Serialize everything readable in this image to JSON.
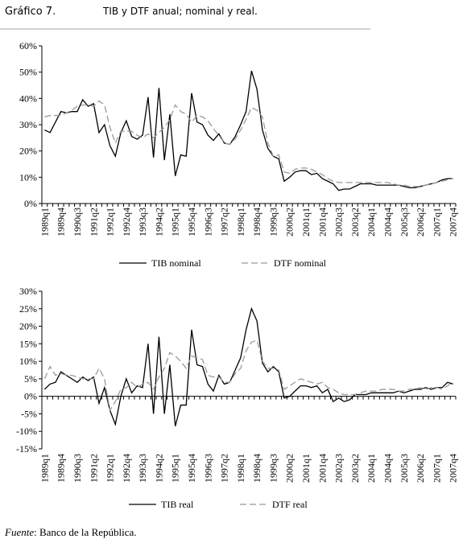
{
  "header": {
    "label": "Gráfico 7.",
    "title": "TIB y DTF anual; nominal y real."
  },
  "footer": {
    "source_label": "Fuente",
    "source": ": Banco de la República."
  },
  "chart_data": [
    {
      "type": "line",
      "legend": "bottom",
      "categories": [
        "1989q1",
        null,
        null,
        "1989q4",
        null,
        null,
        "1990q3",
        null,
        null,
        "1991q2",
        null,
        null,
        "1992q1",
        null,
        null,
        "1992q4",
        null,
        null,
        "1993q3",
        null,
        null,
        "1994q2",
        null,
        null,
        "1995q1",
        null,
        null,
        "1995q4",
        null,
        null,
        "1996q3",
        null,
        null,
        "1997q2",
        null,
        null,
        "1998q1",
        null,
        null,
        "1998q4",
        null,
        null,
        "1999q3",
        null,
        null,
        "2000q2",
        null,
        null,
        "2001q1",
        null,
        null,
        "2001q4",
        null,
        null,
        "2002q3",
        null,
        null,
        "2003q2",
        null,
        null,
        "2004q1",
        null,
        null,
        "2004q4",
        null,
        null,
        "2005q3",
        null,
        null,
        "2006q2",
        null,
        null,
        "2007q1",
        null,
        null,
        "2007q4"
      ],
      "ylim": [
        0,
        60
      ],
      "yticks": [
        {
          "value": 0,
          "label": "0%"
        },
        {
          "value": 10,
          "label": "10%"
        },
        {
          "value": 20,
          "label": "20%"
        },
        {
          "value": 30,
          "label": "30%"
        },
        {
          "value": 40,
          "label": "40%"
        },
        {
          "value": 50,
          "label": "50%"
        },
        {
          "value": 60,
          "label": "60%"
        }
      ],
      "series": [
        {
          "name": "TIB nominal",
          "color": "#000000",
          "style": "solid",
          "values": [
            28,
            27,
            31,
            35,
            34.5,
            35,
            35,
            39.5,
            37,
            38,
            27,
            30,
            22,
            18,
            27,
            31.5,
            25.5,
            24.5,
            26,
            40.5,
            17.5,
            44,
            16.5,
            34,
            10.5,
            18.5,
            18,
            42,
            31,
            30,
            26,
            24,
            26.5,
            23,
            22.5,
            25.5,
            30,
            35,
            50.5,
            43.5,
            28,
            21,
            18,
            17,
            8.5,
            10,
            12,
            12.5,
            12.5,
            11,
            11.5,
            9.5,
            8.5,
            7.5,
            5,
            5.5,
            5.5,
            6.5,
            7.5,
            7.5,
            7.5,
            7,
            7,
            7,
            7,
            7,
            6.5,
            6,
            6,
            6.5,
            7,
            7.5,
            8,
            9,
            9.5,
            9.5
          ]
        },
        {
          "name": "DTF nominal",
          "color": "#9a9a9a",
          "style": "dashed",
          "values": [
            33,
            33.5,
            33.5,
            33.5,
            34.5,
            35.5,
            37,
            37.5,
            37.5,
            37,
            39,
            37.5,
            29,
            23,
            27.5,
            27.5,
            27.5,
            26,
            25,
            26.5,
            25,
            27,
            29,
            32,
            37.5,
            35,
            34,
            31,
            33.5,
            33,
            31.5,
            28.5,
            26,
            23,
            22.5,
            24.5,
            28,
            32,
            36.5,
            35.5,
            33,
            23,
            18,
            18.5,
            12,
            11.5,
            13,
            13.5,
            13.5,
            13,
            12,
            11,
            9.5,
            8.5,
            8,
            8,
            8,
            8,
            8,
            8,
            8,
            8,
            8,
            8,
            7.5,
            7,
            7,
            6.5,
            6.5,
            6.5,
            7,
            7.5,
            8,
            8.5,
            9,
            9.5
          ]
        }
      ]
    },
    {
      "type": "line",
      "legend": "bottom",
      "categories": [
        "1989q1",
        null,
        null,
        "1989q4",
        null,
        null,
        "1990q3",
        null,
        null,
        "1991q2",
        null,
        null,
        "1992q1",
        null,
        null,
        "1992q4",
        null,
        null,
        "1993q3",
        null,
        null,
        "1994q2",
        null,
        null,
        "1995q1",
        null,
        null,
        "1995q4",
        null,
        null,
        "1996q3",
        null,
        null,
        "1997q2",
        null,
        null,
        "1998q1",
        null,
        null,
        "1998q4",
        null,
        null,
        "1999q3",
        null,
        null,
        "2000q2",
        null,
        null,
        "2001q1",
        null,
        null,
        "2001q4",
        null,
        null,
        "2002q3",
        null,
        null,
        "2003q2",
        null,
        null,
        "2004q1",
        null,
        null,
        "2004q4",
        null,
        null,
        "2005q3",
        null,
        null,
        "2006q2",
        null,
        null,
        "2007q1",
        null,
        null,
        "2007q4"
      ],
      "ylim": [
        -15,
        30
      ],
      "yticks": [
        {
          "value": -15,
          "label": "-15%"
        },
        {
          "value": -10,
          "label": "-10%"
        },
        {
          "value": -5,
          "label": "-5%"
        },
        {
          "value": 0,
          "label": "0%"
        },
        {
          "value": 5,
          "label": "5%"
        },
        {
          "value": 10,
          "label": "10%"
        },
        {
          "value": 15,
          "label": "15%"
        },
        {
          "value": 20,
          "label": "20%"
        },
        {
          "value": 25,
          "label": "25%"
        },
        {
          "value": 30,
          "label": "30%"
        }
      ],
      "series": [
        {
          "name": "TIB real",
          "color": "#000000",
          "style": "solid",
          "values": [
            2,
            3.5,
            4,
            7,
            6,
            5,
            4,
            5.5,
            4.5,
            5.5,
            -2,
            2.5,
            -4,
            -8,
            0,
            5,
            1,
            3,
            2.5,
            15,
            -5,
            17,
            -5,
            9,
            -8.5,
            -2.5,
            -2.5,
            19,
            9,
            8.5,
            3.5,
            1.5,
            6,
            3.5,
            4,
            7.5,
            11,
            19,
            25,
            21.5,
            9.5,
            7,
            8.5,
            7,
            -0.5,
            0,
            1.5,
            3,
            3,
            2.5,
            3,
            1,
            2,
            -1.5,
            -0.5,
            -1.5,
            -1,
            0.5,
            0.5,
            0.5,
            1,
            1,
            1,
            1,
            1,
            1.5,
            1,
            1.5,
            2,
            2,
            2.5,
            2,
            2.5,
            2.5,
            4,
            3.5
          ]
        },
        {
          "name": "DTF real",
          "color": "#9a9a9a",
          "style": "dashed",
          "values": [
            5,
            8.5,
            6,
            6.5,
            6,
            6,
            5.5,
            5,
            5,
            5,
            8,
            5,
            -4,
            -1.5,
            2,
            2.5,
            4,
            2.5,
            3.5,
            4,
            2,
            5.5,
            8,
            12.5,
            11.5,
            10,
            8,
            11.5,
            11,
            10.5,
            6,
            5.5,
            5.5,
            4,
            4,
            6.5,
            8,
            13,
            15.5,
            16,
            10,
            8,
            8,
            7.5,
            2,
            3,
            4,
            5,
            4.5,
            4,
            3.5,
            4,
            2.5,
            2,
            1,
            0.5,
            0.5,
            0.5,
            1,
            1.5,
            1.5,
            1.5,
            2,
            2,
            2,
            1.5,
            1.5,
            2,
            2,
            2.5,
            2,
            2.5,
            2.5,
            2,
            3,
            4
          ]
        }
      ]
    }
  ]
}
